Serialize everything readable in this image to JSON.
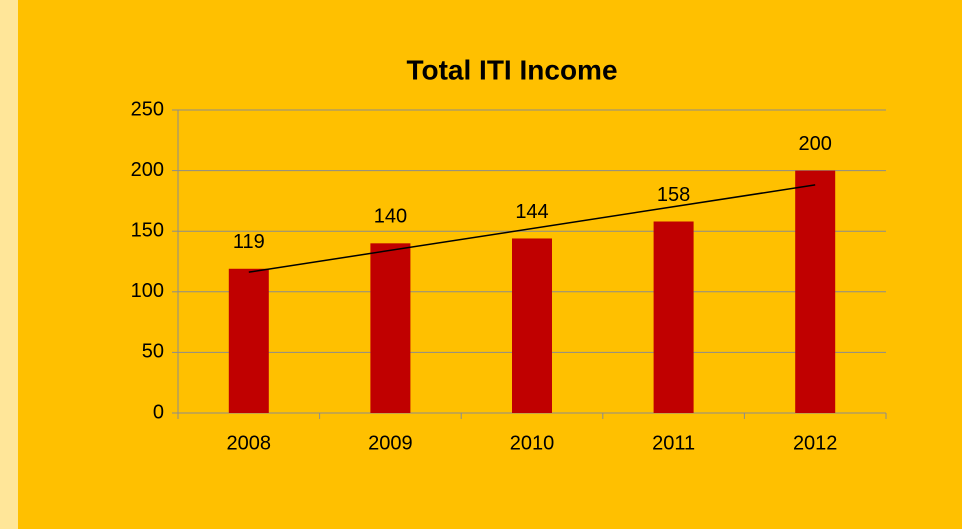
{
  "chart_data": {
    "type": "bar",
    "title": "Total ITI Income",
    "categories": [
      "2008",
      "2009",
      "2010",
      "2011",
      "2012"
    ],
    "values": [
      119,
      140,
      144,
      158,
      200
    ],
    "color": "#c00000",
    "ylim": [
      0,
      250
    ],
    "yticks": [
      0,
      50,
      100,
      150,
      200,
      250
    ],
    "grid": true,
    "trendline": "linear"
  }
}
